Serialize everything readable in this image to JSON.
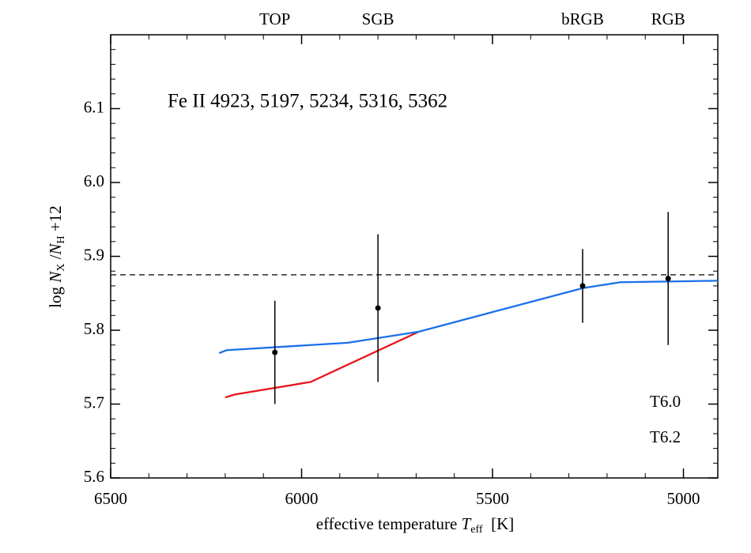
{
  "chart_data": {
    "type": "line",
    "annotation": "Fe II 4923, 5197, 5234, 5316, 5362",
    "annotation_color": "#1a6fe8",
    "x_label": [
      "effective temperature ",
      "T",
      "eff",
      "  [K]"
    ],
    "y_label": [
      "log ",
      "N",
      "X",
      " /",
      "N",
      "H",
      " +12"
    ],
    "xlim": [
      6500,
      4910
    ],
    "ylim": [
      5.6,
      6.2
    ],
    "xticks": [
      6500,
      6000,
      5500,
      5000
    ],
    "yticks": [
      5.6,
      5.7,
      5.8,
      5.9,
      {
        "value": 6,
        "label": "6.0"
      },
      6.1
    ],
    "reference_line": 5.875,
    "series": [
      {
        "name": "T6.0",
        "color": "#e8141a",
        "x": [
          6200,
          6175,
          5976,
          5693
        ],
        "values": [
          5.709,
          5.713,
          5.73,
          5.798
        ]
      },
      {
        "name": "T6.2",
        "color": "#1a6fe8",
        "x": [
          6216,
          6196,
          5879,
          5693,
          5264,
          5165,
          4910
        ],
        "values": [
          5.769,
          5.773,
          5.783,
          5.798,
          5.857,
          5.865,
          5.867
        ]
      }
    ],
    "points": {
      "labels": [
        "TOP",
        "SGB",
        "bRGB",
        "RGB"
      ],
      "x": [
        6070,
        5800,
        5264,
        5040
      ],
      "values": [
        5.77,
        5.83,
        5.86,
        5.87
      ],
      "errors": [
        0.07,
        0.1,
        0.05,
        0.09
      ]
    }
  }
}
